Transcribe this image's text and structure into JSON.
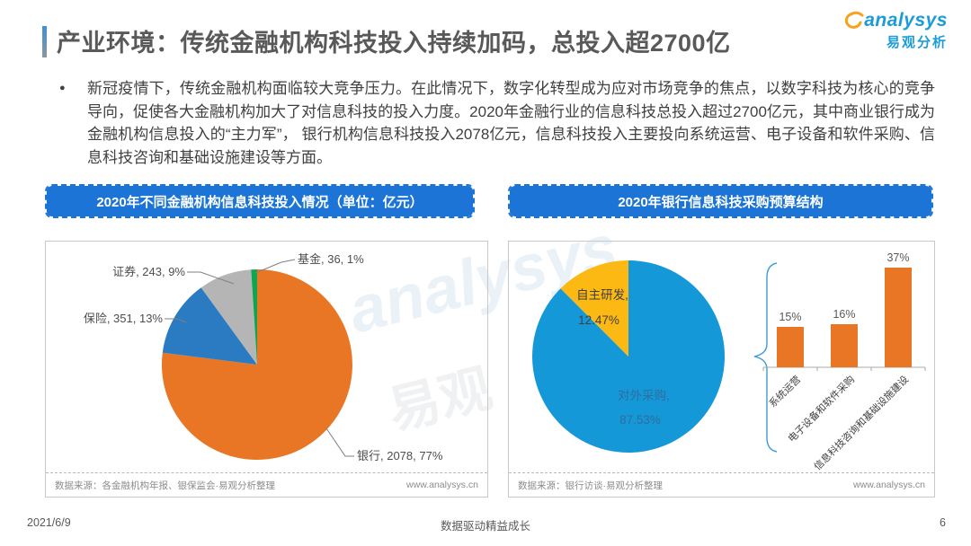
{
  "slide": {
    "title": "产业环境：传统金融机构科技投入持续加码，总投入超2700亿",
    "logo": {
      "brand": "analysys",
      "brand_cn": "易观分析"
    },
    "bullet": "新冠疫情下，传统金融机构面临较大竞争压力。在此情况下，数字化转型成为应对市场竞争的焦点，以数字科技为核心的竞争导向，促使各大金融机构加大了对信息科技的投入力度。2020年金融行业的信息科技总投入超过2700亿元，其中商业银行成为金融机构信息投入的“主力军”， 银行机构信息科技投入2078亿元，信息科技投入主要投向系统运营、电子设备和软件采购、信息科技咨询和基础设施建设等方面。",
    "footer": {
      "date": "2021/6/9",
      "slogan": "数据驱动精益成长",
      "page_number": "6"
    },
    "watermark": {
      "text_en": "analysys",
      "text_cn": "易观"
    }
  },
  "left_panel": {
    "header": "2020年不同金融机构信息科技投入情况（单位：亿元）",
    "source": "数据来源：各金融机构年报、银保监会·易观分析整理",
    "website": "www.analysys.cn"
  },
  "right_panel": {
    "header": "2020年银行信息科技采购预算结构",
    "source": "数据来源：银行访谈·易观分析整理",
    "website": "www.analysys.cn"
  },
  "colors": {
    "header_bar_blue": "#1B74D6",
    "bank_orange": "#E97624",
    "insurance_blue": "#2B7BC2",
    "securities_gray": "#B5B5B5",
    "fund_green": "#0DA64F",
    "procurement_blue": "#1498D8",
    "rd_yellow": "#FDB913",
    "logo_blue": "#1B9CD8",
    "logo_swoosh_orange": "#F6A21D"
  },
  "chart_data": [
    {
      "type": "pie",
      "title": "2020年不同金融机构信息科技投入情况",
      "unit": "亿元",
      "start": "top",
      "direction": "clockwise",
      "slices": [
        {
          "label": "银行",
          "value": 2078,
          "pct": 77,
          "color": "#E97624",
          "display": "银行, 2078, 77%"
        },
        {
          "label": "保险",
          "value": 351,
          "pct": 13,
          "color": "#2B7BC2",
          "display": "保险, 351, 13%"
        },
        {
          "label": "证券",
          "value": 243,
          "pct": 9,
          "color": "#B5B5B5",
          "display": "证券, 243, 9%"
        },
        {
          "label": "基金",
          "value": 36,
          "pct": 1,
          "color": "#0DA64F",
          "display": "基金, 36, 1%"
        }
      ]
    },
    {
      "type": "pie",
      "title": "2020年银行信息科技采购预算结构",
      "start": "top",
      "direction": "clockwise",
      "slices": [
        {
          "label": "对外采购",
          "pct": 87.53,
          "color": "#1498D8",
          "display_name": "对外采购,",
          "display_pct": "87.53%"
        },
        {
          "label": "自主研发",
          "pct": 12.47,
          "color": "#FDB913",
          "display_name": "自主研发,",
          "display_pct": "12.47%"
        }
      ]
    },
    {
      "type": "bar",
      "title": "对外采购预算结构",
      "categories": [
        "系统运营",
        "电子设备和软件采购",
        "信息科技咨询和基础设施建设"
      ],
      "values": [
        15,
        16,
        37
      ],
      "labels": [
        "15%",
        "16%",
        "37%"
      ],
      "bar_color": "#E97624",
      "ylim": [
        0,
        40
      ],
      "grid": false,
      "legend": "none"
    }
  ]
}
